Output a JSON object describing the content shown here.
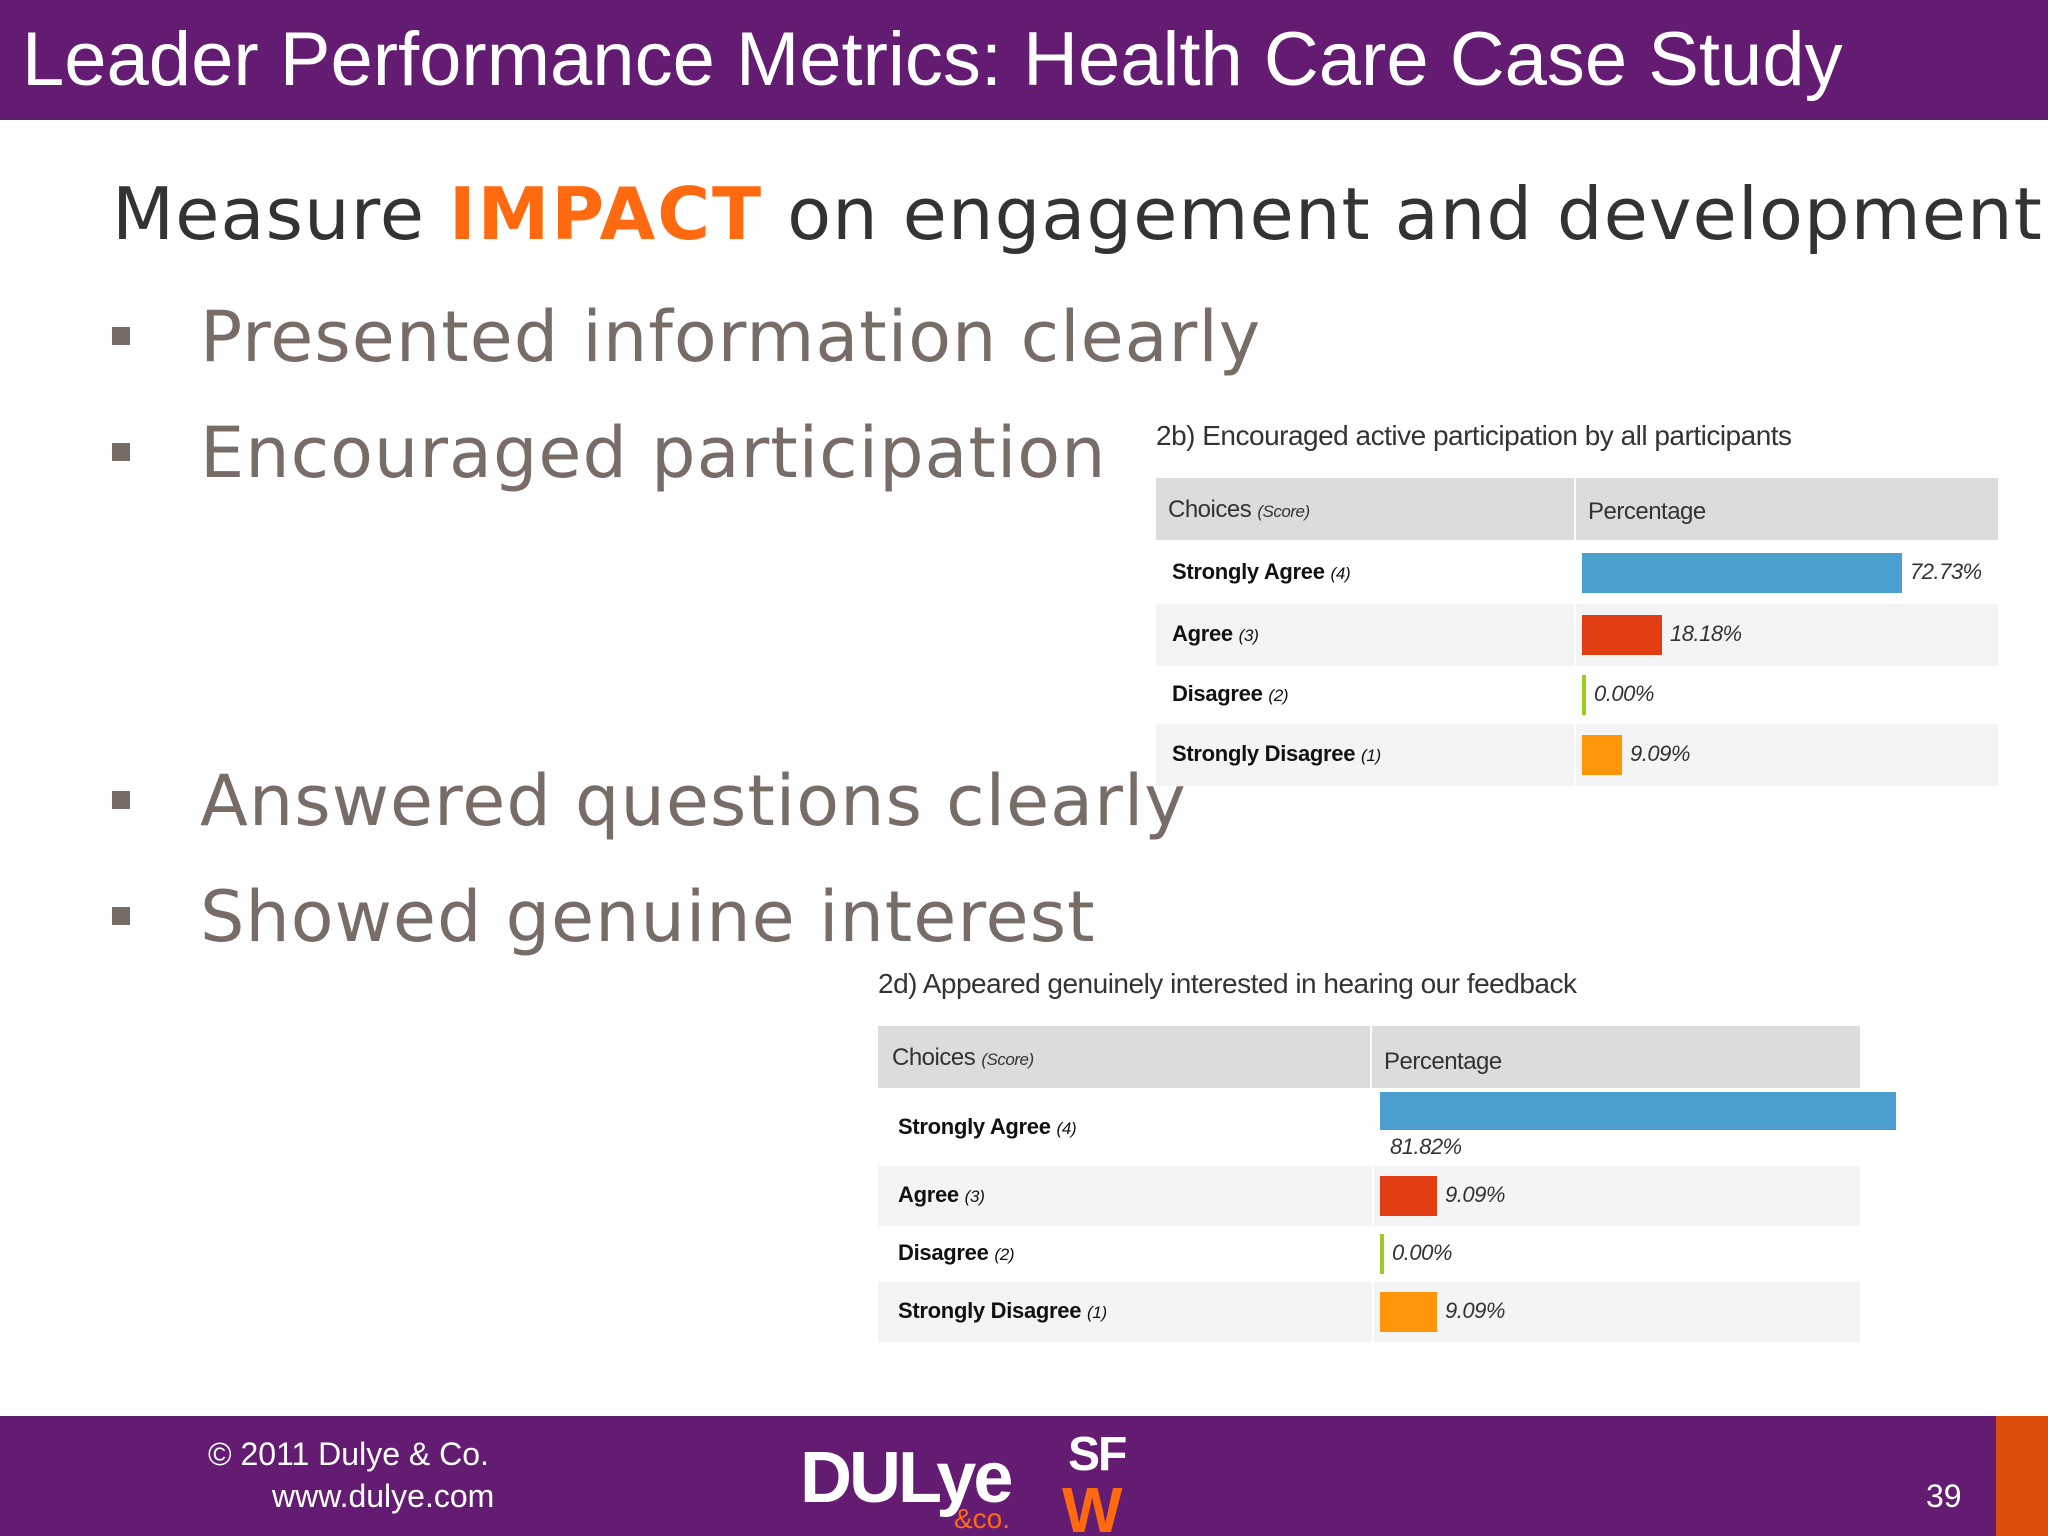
{
  "header": {
    "title": "Leader Performance Metrics: Health Care Case Study"
  },
  "subtitle": {
    "prefix": "Measure",
    "emphasis": "IMPACT",
    "suffix": "on engagement and development"
  },
  "bullets": [
    "Presented information clearly",
    "Encouraged participation",
    "Answered questions clearly",
    "Showed genuine interest"
  ],
  "colors": {
    "header_bg": "#641c72",
    "accent": "#ff6a10",
    "footer_accent": "#dc4e0c",
    "strongly_agree": "#4a9fcf",
    "agree": "#e23e14",
    "disagree": "#9ccc22",
    "strongly_disagree": "#ff960a"
  },
  "chart_data": [
    {
      "type": "bar",
      "title": "2b) Encouraged active participation by all participants",
      "column_headers": {
        "choices": "Choices",
        "choices_note": "(Score)",
        "percentage": "Percentage"
      },
      "categories": [
        "Strongly Agree",
        "Agree",
        "Disagree",
        "Strongly Disagree"
      ],
      "scores": [
        "(4)",
        "(3)",
        "(2)",
        "(1)"
      ],
      "values": [
        72.73,
        18.18,
        0.0,
        9.09
      ],
      "value_labels": [
        "72.73%",
        "18.18%",
        "0.00%",
        "9.09%"
      ]
    },
    {
      "type": "bar",
      "title": "2d) Appeared genuinely interested in hearing our feedback",
      "column_headers": {
        "choices": "Choices",
        "choices_note": "(Score)",
        "percentage": "Percentage"
      },
      "categories": [
        "Strongly Agree",
        "Agree",
        "Disagree",
        "Strongly Disagree"
      ],
      "scores": [
        "(4)",
        "(3)",
        "(2)",
        "(1)"
      ],
      "values": [
        81.82,
        9.09,
        0.0,
        9.09
      ],
      "value_labels": [
        "81.82%",
        "9.09%",
        "0.00%",
        "9.09%"
      ]
    }
  ],
  "footer": {
    "copyright": "© 2011 Dulye & Co.",
    "website": "www.dulye.com",
    "page_number": "39",
    "logo_main": "DULye",
    "logo_sub": "&co.",
    "logo_sfw_top": "SF",
    "logo_sfw_bottom": "W"
  }
}
